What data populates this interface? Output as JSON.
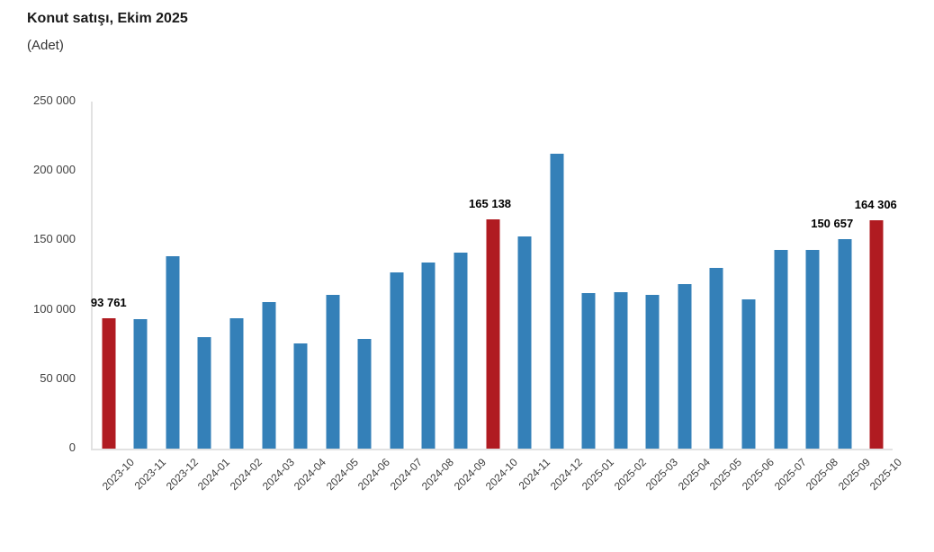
{
  "header": {
    "title": "Konut satışı, Ekim 2025",
    "subtitle": "(Adet)"
  },
  "colors": {
    "bar_default": "#3480b8",
    "bar_highlight": "#b01b21",
    "axis_line": "#e2e2e2",
    "tick_text": "#404040"
  },
  "chart_data": {
    "type": "bar",
    "title": "Konut satışı, Ekim 2025",
    "xlabel": "",
    "ylabel": "(Adet)",
    "ylim": [
      0,
      250000
    ],
    "grid": "off",
    "legend": "none",
    "y_ticks": [
      {
        "value": 0,
        "label": "0"
      },
      {
        "value": 50000,
        "label": "50 000"
      },
      {
        "value": 100000,
        "label": "100 000"
      },
      {
        "value": 150000,
        "label": "150 000"
      },
      {
        "value": 200000,
        "label": "200 000"
      },
      {
        "value": 250000,
        "label": "250 000"
      }
    ],
    "categories": [
      "2023-10",
      "2023-11",
      "2023-12",
      "2024-01",
      "2024-02",
      "2024-03",
      "2024-04",
      "2024-05",
      "2024-06",
      "2024-07",
      "2024-08",
      "2024-09",
      "2024-10",
      "2024-11",
      "2024-12",
      "2025-01",
      "2025-02",
      "2025-03",
      "2025-04",
      "2025-05",
      "2025-06",
      "2025-07",
      "2025-08",
      "2025-09",
      "2025-10"
    ],
    "values": [
      93761,
      93178,
      138577,
      80308,
      93902,
      105476,
      75569,
      110588,
      79313,
      127088,
      134155,
      140919,
      165138,
      153014,
      212637,
      112173,
      112818,
      110795,
      118359,
      130025,
      107723,
      142858,
      143319,
      150657,
      164306
    ],
    "points": [
      {
        "category": "2023-10",
        "value": 93761,
        "highlight": true,
        "label": "93 761",
        "label_dx": 0
      },
      {
        "category": "2023-11",
        "value": 93178,
        "highlight": false
      },
      {
        "category": "2023-12",
        "value": 138577,
        "highlight": false
      },
      {
        "category": "2024-01",
        "value": 80308,
        "highlight": false
      },
      {
        "category": "2024-02",
        "value": 93902,
        "highlight": false
      },
      {
        "category": "2024-03",
        "value": 105476,
        "highlight": false
      },
      {
        "category": "2024-04",
        "value": 75569,
        "highlight": false
      },
      {
        "category": "2024-05",
        "value": 110588,
        "highlight": false
      },
      {
        "category": "2024-06",
        "value": 79313,
        "highlight": false
      },
      {
        "category": "2024-07",
        "value": 127088,
        "highlight": false
      },
      {
        "category": "2024-08",
        "value": 134155,
        "highlight": false
      },
      {
        "category": "2024-09",
        "value": 140919,
        "highlight": false
      },
      {
        "category": "2024-10",
        "value": 165138,
        "highlight": true,
        "label": "165 138",
        "label_dx": -3
      },
      {
        "category": "2024-11",
        "value": 153014,
        "highlight": false
      },
      {
        "category": "2024-12",
        "value": 212637,
        "highlight": false
      },
      {
        "category": "2025-01",
        "value": 112173,
        "highlight": false
      },
      {
        "category": "2025-02",
        "value": 112818,
        "highlight": false
      },
      {
        "category": "2025-03",
        "value": 110795,
        "highlight": false
      },
      {
        "category": "2025-04",
        "value": 118359,
        "highlight": false
      },
      {
        "category": "2025-05",
        "value": 130025,
        "highlight": false
      },
      {
        "category": "2025-06",
        "value": 107723,
        "highlight": false
      },
      {
        "category": "2025-07",
        "value": 142858,
        "highlight": false
      },
      {
        "category": "2025-08",
        "value": 143319,
        "highlight": false
      },
      {
        "category": "2025-09",
        "value": 150657,
        "highlight": false,
        "label": "150 657",
        "label_dx": -14
      },
      {
        "category": "2025-10",
        "value": 164306,
        "highlight": true,
        "label": "164 306",
        "label_dx": -1
      }
    ]
  }
}
